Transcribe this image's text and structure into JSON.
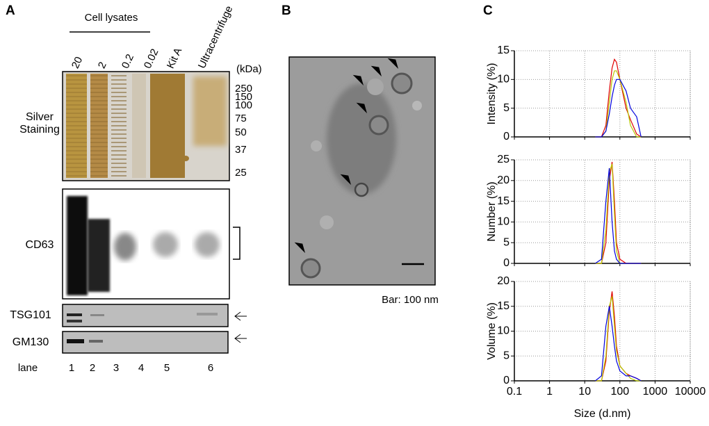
{
  "panel_a": {
    "label": "A",
    "group_label": "Cell lysates",
    "lane_headers": [
      "20",
      "2",
      "0.2",
      "0.02",
      "Kit A",
      "Ultracentrifuge"
    ],
    "kda_unit": "(kDa)",
    "kda_markers": [
      250,
      150,
      100,
      75,
      50,
      37,
      25
    ],
    "row_labels": [
      "Silver Staining",
      "CD63",
      "TSG101",
      "GM130"
    ],
    "lane_title": "lane",
    "lane_numbers": [
      1,
      2,
      3,
      4,
      5,
      6
    ]
  },
  "panel_b": {
    "label": "B",
    "scale_bar": "Bar: 100 nm"
  },
  "panel_c": {
    "label": "C"
  },
  "chart_data": [
    {
      "type": "line",
      "ylabel": "Intensity (%)",
      "xscale": "log",
      "grid": true,
      "x": [
        20,
        30,
        40,
        50,
        60,
        70,
        80,
        100,
        150,
        200,
        300,
        400
      ],
      "xlim": [
        0.1,
        10000
      ],
      "xticks": [
        0.1,
        1,
        10,
        100,
        1000,
        10000
      ],
      "ylim": [
        0,
        15
      ],
      "yticks": [
        0,
        5,
        10,
        15
      ],
      "series": [
        {
          "color": "#e00000",
          "values": [
            0,
            0,
            2,
            8,
            12,
            13.5,
            13,
            10,
            5,
            3,
            0.5,
            0
          ]
        },
        {
          "color": "#b8c800",
          "values": [
            0,
            0,
            1,
            6,
            10,
            11.5,
            11.5,
            10,
            6,
            2,
            0,
            0
          ]
        },
        {
          "color": "#0000dd",
          "values": [
            0,
            0,
            1,
            4,
            7,
            9,
            10,
            10,
            8,
            5,
            3.5,
            0
          ]
        }
      ]
    },
    {
      "type": "line",
      "ylabel": "Number (%)",
      "xscale": "log",
      "grid": true,
      "x": [
        20,
        30,
        40,
        50,
        60,
        70,
        80,
        100,
        150,
        200,
        300,
        400
      ],
      "xlim": [
        0.1,
        10000
      ],
      "xticks": [
        0.1,
        1,
        10,
        100,
        1000,
        10000
      ],
      "ylim": [
        0,
        25
      ],
      "yticks": [
        0,
        5,
        10,
        15,
        20,
        25
      ],
      "series": [
        {
          "color": "#e00000",
          "values": [
            0,
            0,
            5,
            20,
            24.5,
            15,
            5,
            1,
            0,
            0,
            0,
            0
          ]
        },
        {
          "color": "#b8c800",
          "values": [
            0,
            0,
            8,
            22,
            24,
            12,
            3,
            0,
            0,
            0,
            0,
            0
          ]
        },
        {
          "color": "#0000dd",
          "values": [
            0,
            1,
            15,
            23,
            10,
            3,
            1,
            0,
            0,
            0,
            0,
            0
          ]
        }
      ]
    },
    {
      "type": "line",
      "ylabel": "Volume (%)",
      "xlabel": "Size (d.nm)",
      "xscale": "log",
      "grid": true,
      "x": [
        20,
        30,
        40,
        50,
        60,
        70,
        80,
        100,
        150,
        200,
        300,
        400
      ],
      "xlim": [
        0.1,
        10000
      ],
      "xticks": [
        0.1,
        1,
        10,
        100,
        1000,
        10000
      ],
      "ylim": [
        0,
        20
      ],
      "yticks": [
        0,
        5,
        10,
        15,
        20
      ],
      "series": [
        {
          "color": "#e00000",
          "values": [
            0,
            0,
            4,
            14,
            18,
            13,
            7,
            3,
            1.5,
            1,
            0.5,
            0
          ]
        },
        {
          "color": "#b8c800",
          "values": [
            0,
            0,
            5,
            15,
            17,
            11,
            6,
            3,
            1.5,
            0.5,
            0,
            0
          ]
        },
        {
          "color": "#0000dd",
          "values": [
            0,
            1,
            11,
            15,
            11,
            7,
            4,
            2,
            1,
            1,
            0.5,
            0
          ]
        }
      ]
    }
  ]
}
